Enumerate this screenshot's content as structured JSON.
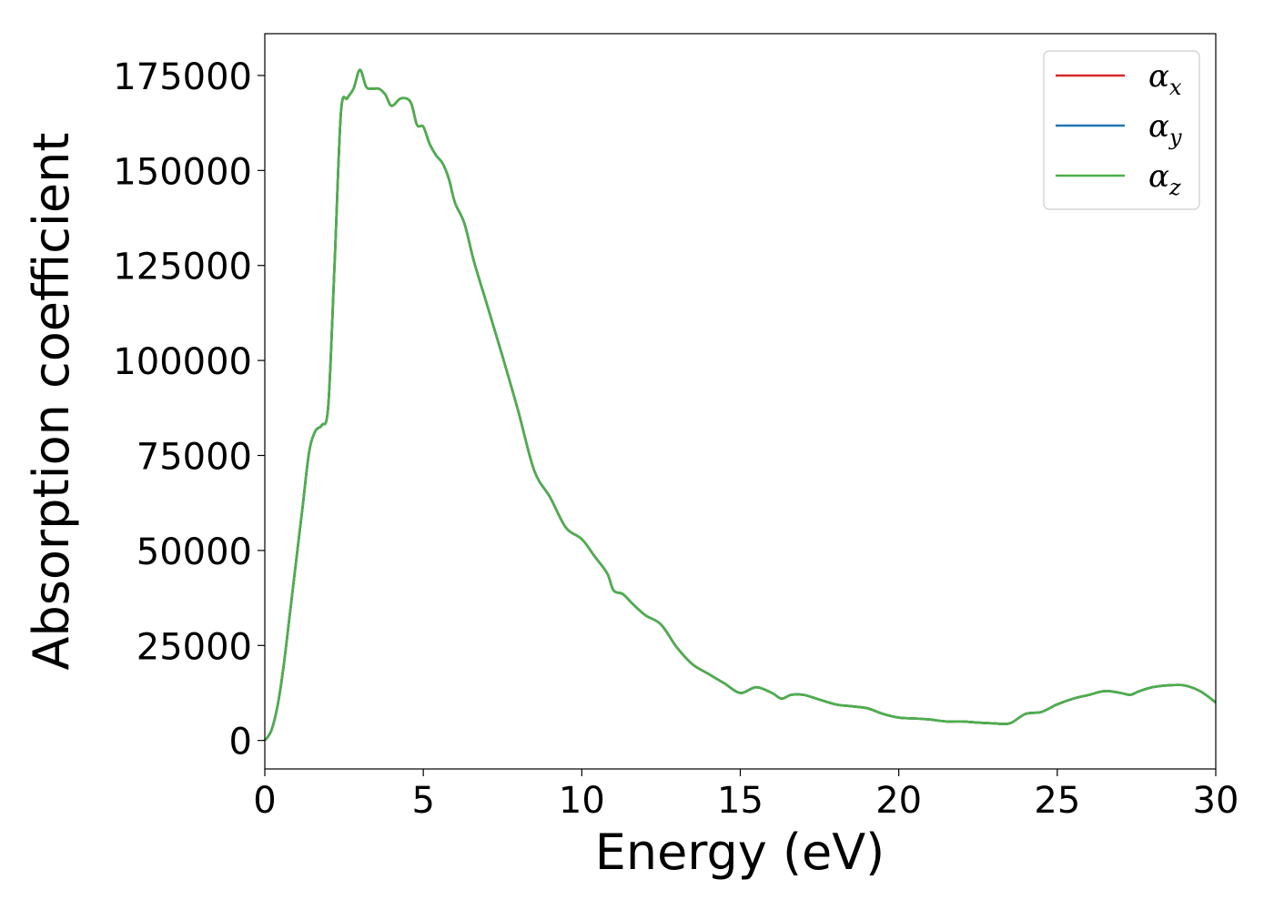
{
  "chart_data": {
    "type": "line",
    "xlabel": "Energy (eV)",
    "ylabel": "Absorption coefficient",
    "xlim": [
      0,
      30
    ],
    "ylim": [
      -7500,
      186000
    ],
    "x_ticks": [
      "0",
      "5",
      "10",
      "15",
      "20",
      "25",
      "30"
    ],
    "y_ticks": [
      "0",
      "25000",
      "50000",
      "75000",
      "100000",
      "125000",
      "150000",
      "175000"
    ],
    "grid": false,
    "legend_placement": "top-right",
    "legend": [
      {
        "base": "α",
        "sub": "x",
        "color": "#d62728"
      },
      {
        "base": "α",
        "sub": "y",
        "color": "#1f77b4"
      },
      {
        "base": "α",
        "sub": "z",
        "color": "#4daf4a"
      }
    ],
    "x": [
      0,
      0.2,
      0.4,
      0.6,
      0.8,
      1.0,
      1.2,
      1.4,
      1.6,
      1.8,
      2.0,
      2.2,
      2.4,
      2.6,
      2.8,
      3.0,
      3.2,
      3.4,
      3.6,
      3.8,
      4.0,
      4.3,
      4.6,
      4.8,
      5.0,
      5.2,
      5.4,
      5.6,
      5.8,
      6.0,
      6.3,
      6.6,
      7.0,
      7.5,
      8.0,
      8.5,
      9.0,
      9.5,
      10.0,
      10.4,
      10.8,
      11.0,
      11.3,
      11.6,
      12.0,
      12.5,
      13.0,
      13.5,
      14.0,
      14.5,
      15.0,
      15.5,
      16.0,
      16.3,
      16.6,
      17.0,
      17.4,
      18.0,
      18.5,
      19.0,
      19.5,
      20.0,
      20.5,
      21.0,
      21.5,
      22.0,
      22.5,
      23.0,
      23.5,
      24.0,
      24.5,
      25.0,
      25.5,
      26.0,
      26.5,
      27.0,
      27.3,
      27.6,
      28.0,
      28.5,
      29.0,
      29.5,
      30.0
    ],
    "series": [
      {
        "name": "αx",
        "color": "#d62728",
        "values": [
          0,
          2500,
          9000,
          20000,
          34000,
          48000,
          62000,
          76000,
          81500,
          83000,
          88000,
          125000,
          165000,
          169000,
          171500,
          176500,
          172000,
          171500,
          171500,
          170000,
          167000,
          169000,
          168000,
          162000,
          161500,
          157000,
          154000,
          152000,
          148000,
          141500,
          136000,
          126000,
          115000,
          101000,
          86500,
          71000,
          64000,
          56000,
          53000,
          48500,
          44000,
          39500,
          38500,
          36000,
          33000,
          30500,
          24500,
          20000,
          17500,
          15000,
          12500,
          14000,
          12500,
          11000,
          12000,
          12000,
          11000,
          9500,
          9000,
          8500,
          7000,
          6000,
          5800,
          5500,
          5000,
          5000,
          4700,
          4500,
          4500,
          7000,
          7500,
          9500,
          11000,
          12000,
          13000,
          12500,
          12000,
          13000,
          14000,
          14500,
          14500,
          13000,
          10000
        ]
      },
      {
        "name": "αy",
        "color": "#1f77b4",
        "values": [
          0,
          2500,
          9000,
          20000,
          34000,
          48000,
          62000,
          76000,
          81500,
          83000,
          88000,
          125000,
          165000,
          169000,
          171500,
          176500,
          172000,
          171500,
          171500,
          170000,
          167000,
          169000,
          168000,
          162000,
          161500,
          157000,
          154000,
          152000,
          148000,
          141500,
          136000,
          126000,
          115000,
          101000,
          86500,
          71000,
          64000,
          56000,
          53000,
          48500,
          44000,
          39500,
          38500,
          36000,
          33000,
          30500,
          24500,
          20000,
          17500,
          15000,
          12500,
          14000,
          12500,
          11000,
          12000,
          12000,
          11000,
          9500,
          9000,
          8500,
          7000,
          6000,
          5800,
          5500,
          5000,
          5000,
          4700,
          4500,
          4500,
          7000,
          7500,
          9500,
          11000,
          12000,
          13000,
          12500,
          12000,
          13000,
          14000,
          14500,
          14500,
          13000,
          10000
        ]
      },
      {
        "name": "αz",
        "color": "#4daf4a",
        "values": [
          0,
          2500,
          9000,
          20000,
          34000,
          48000,
          62000,
          76000,
          81500,
          83000,
          88000,
          125000,
          165000,
          169000,
          171500,
          176500,
          172000,
          171500,
          171500,
          170000,
          167000,
          169000,
          168000,
          162000,
          161500,
          157000,
          154000,
          152000,
          148000,
          141500,
          136000,
          126000,
          115000,
          101000,
          86500,
          71000,
          64000,
          56000,
          53000,
          48500,
          44000,
          39500,
          38500,
          36000,
          33000,
          30500,
          24500,
          20000,
          17500,
          15000,
          12500,
          14000,
          12500,
          11000,
          12000,
          12000,
          11000,
          9500,
          9000,
          8500,
          7000,
          6000,
          5800,
          5500,
          5000,
          5000,
          4700,
          4500,
          4500,
          7000,
          7500,
          9500,
          11000,
          12000,
          13000,
          12500,
          12000,
          13000,
          14000,
          14500,
          14500,
          13000,
          10000
        ]
      }
    ]
  }
}
